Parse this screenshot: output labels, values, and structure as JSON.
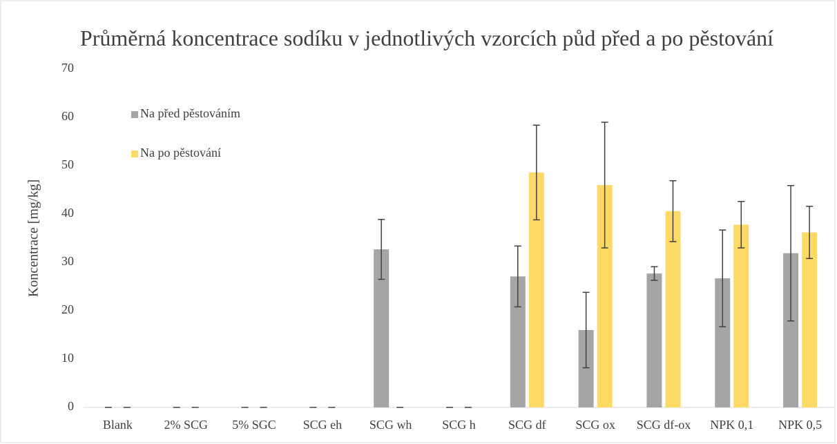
{
  "chart_data": {
    "type": "bar",
    "title": "Průměrná koncentrace sodíku v jednotlivých vzorcích půd před a po pěstování",
    "ylabel": "Koncentrace [mg/kg]",
    "categories": [
      "Blank",
      "2% SCG",
      "5% SGC",
      "SCG eh",
      "SCG wh",
      "SCG h",
      "SCG df",
      "SCG ox",
      "SCG df-ox",
      "NPK 0,1",
      "NPK 0,5"
    ],
    "series": [
      {
        "name": "Na před pěstováním",
        "color": "#a5a5a5",
        "values": [
          0,
          0,
          0,
          0,
          32.7,
          0,
          27.1,
          16,
          27.7,
          26.7,
          31.9
        ],
        "errors": [
          0,
          0,
          0,
          0,
          6.2,
          0,
          6.3,
          7.8,
          1.4,
          10,
          14
        ]
      },
      {
        "name": "Na po pěstování",
        "color": "#ffd966",
        "values": [
          0,
          0,
          0,
          0,
          0,
          0,
          48.6,
          46,
          40.6,
          37.8,
          36.2
        ],
        "errors": [
          0,
          0,
          0,
          0,
          0,
          0,
          9.8,
          13,
          6.3,
          4.8,
          5.4
        ]
      }
    ],
    "ylim": [
      0,
      70
    ],
    "yticks": [
      0,
      10,
      20,
      30,
      40,
      50,
      60,
      70
    ],
    "grid": false,
    "legend": "upper left"
  }
}
